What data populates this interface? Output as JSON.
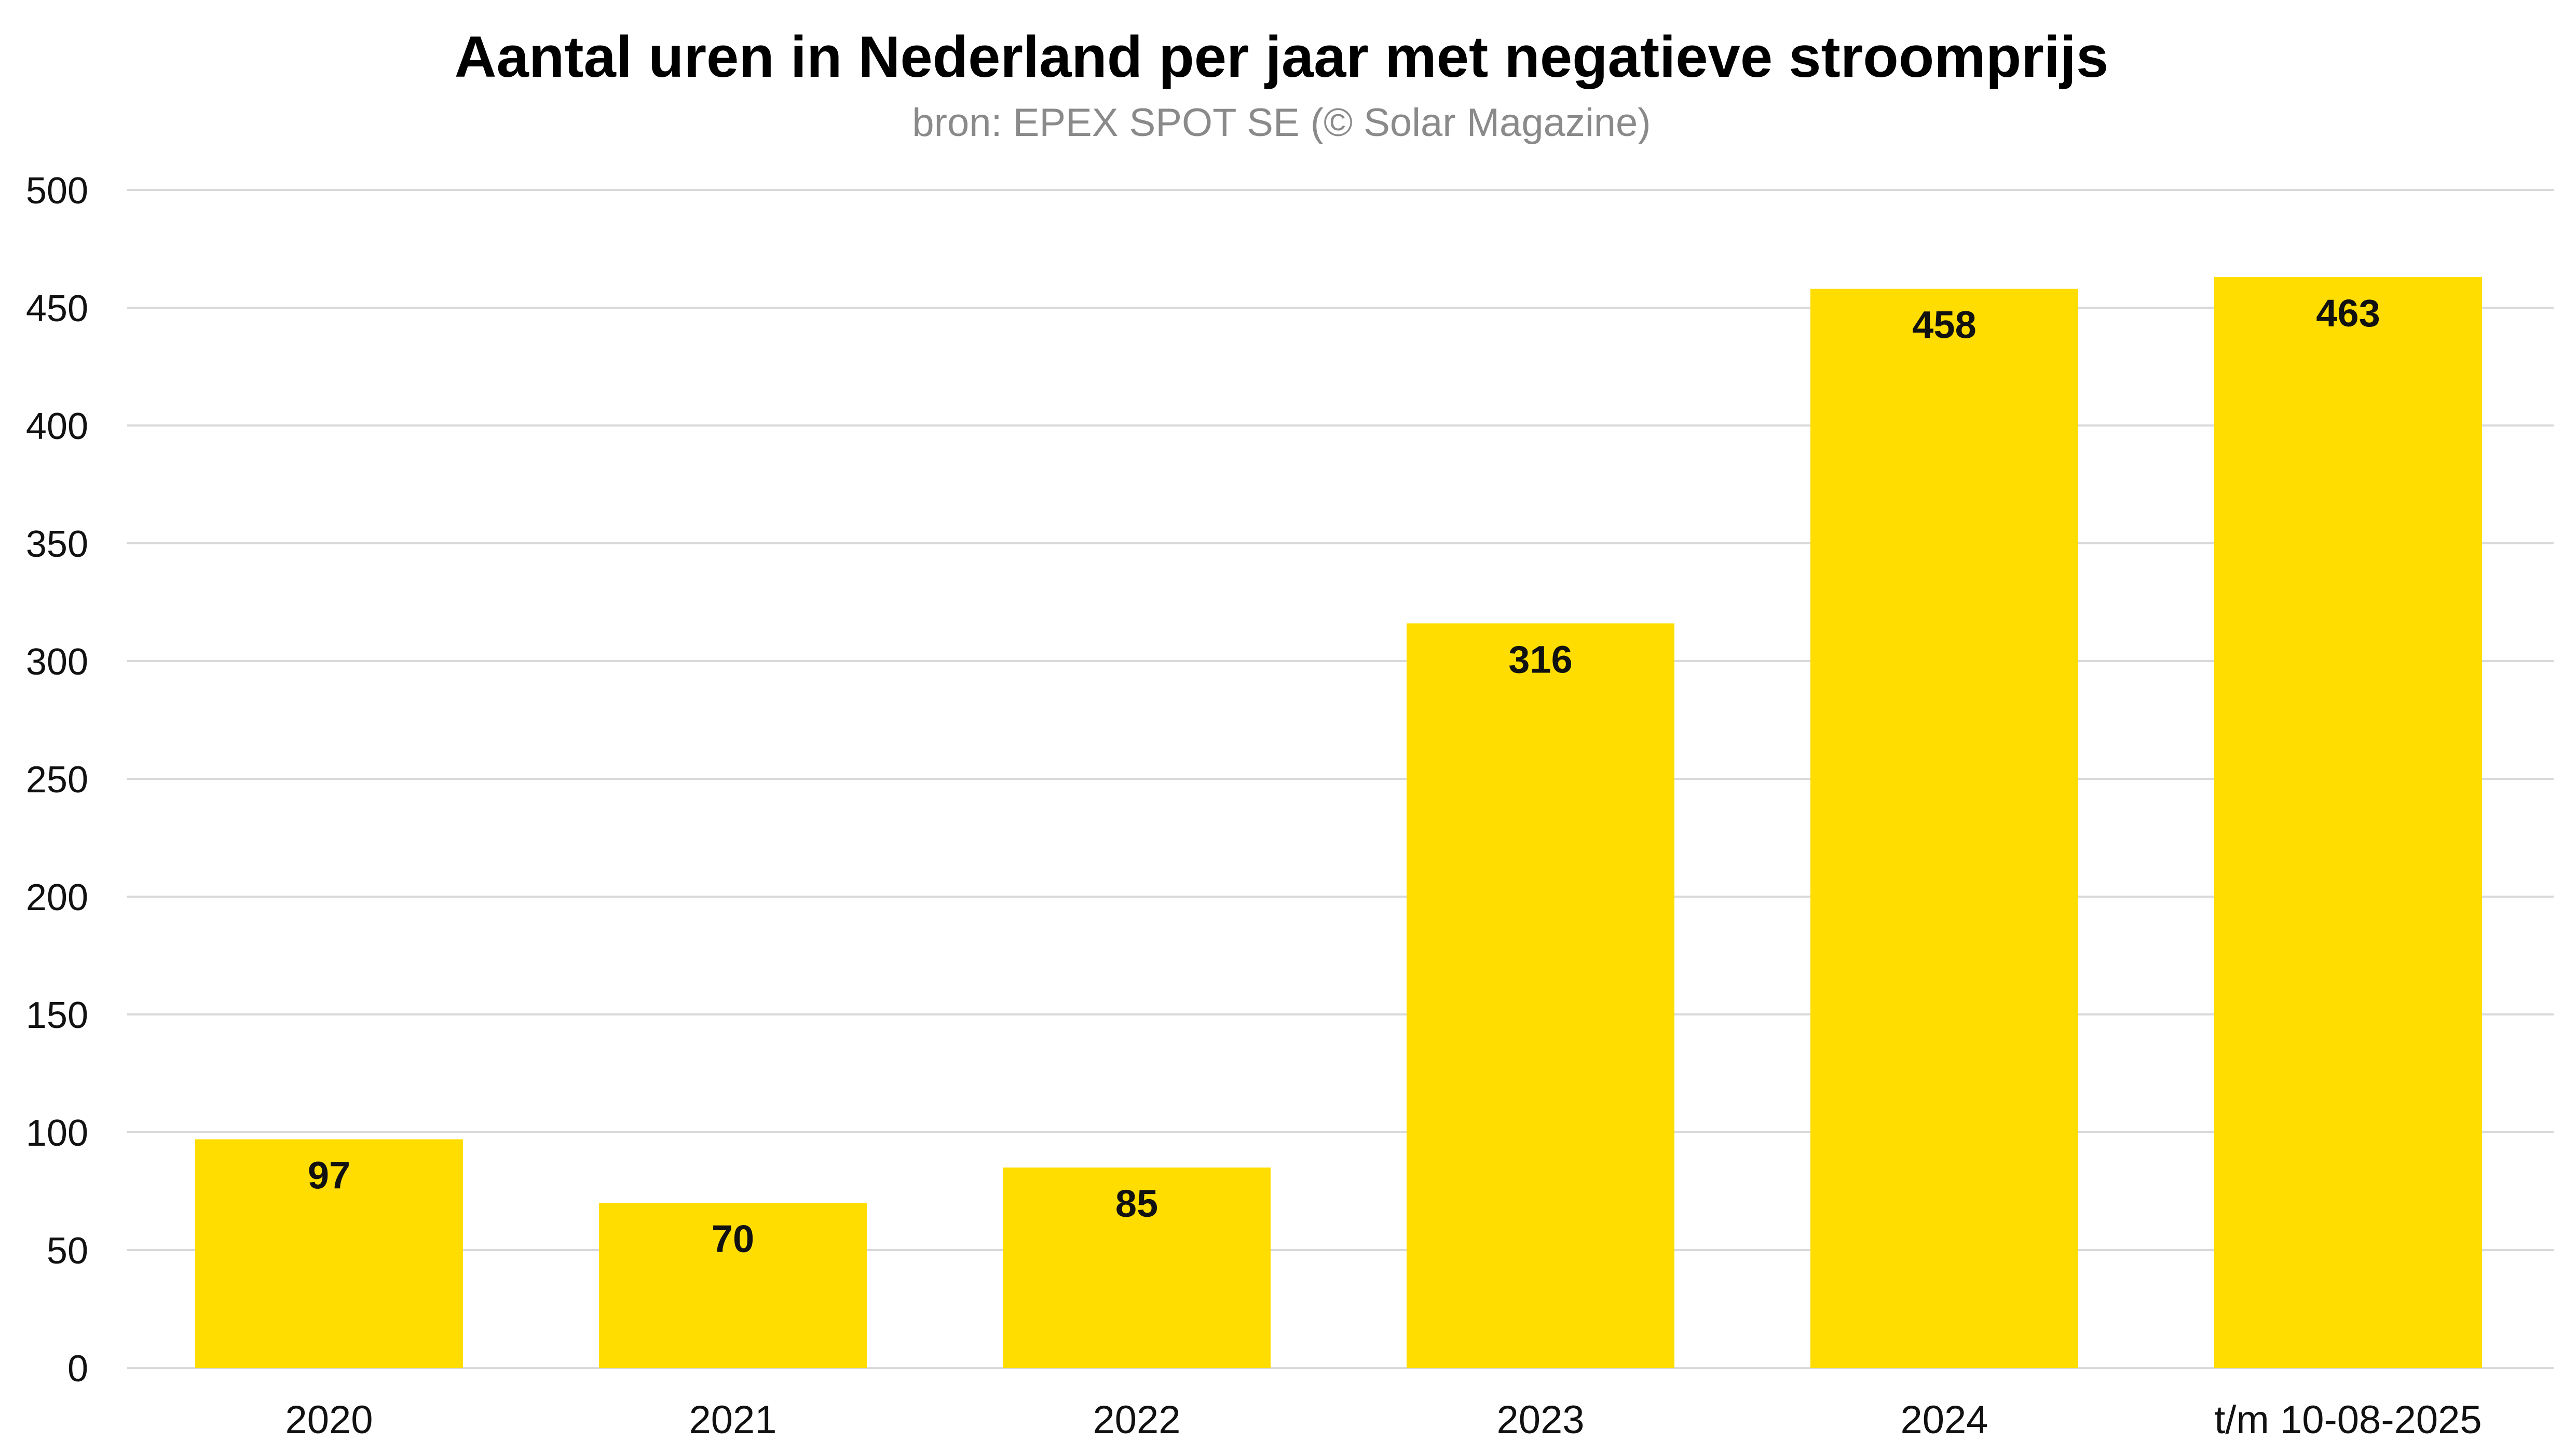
{
  "chart_data": {
    "type": "bar",
    "title": "Aantal uren in Nederland per jaar met negatieve stroomprijs",
    "subtitle": "bron: EPEX SPOT SE (© Solar Magazine)",
    "xlabel": "",
    "ylabel": "",
    "categories": [
      "2020",
      "2021",
      "2022",
      "2023",
      "2024",
      "t/m 10-08-2025"
    ],
    "values": [
      97,
      70,
      85,
      316,
      458,
      463
    ],
    "data_labels": [
      "97",
      "70",
      "85",
      "316",
      "458",
      "463"
    ],
    "ylim": [
      0,
      500
    ],
    "yticks": [
      0,
      50,
      100,
      150,
      200,
      250,
      300,
      350,
      400,
      450,
      500
    ],
    "ytick_labels": [
      "0",
      "50",
      "100",
      "150",
      "200",
      "250",
      "300",
      "350",
      "400",
      "450",
      "500"
    ],
    "grid": true,
    "legend": "none",
    "bar_color": "#FFDD00"
  }
}
